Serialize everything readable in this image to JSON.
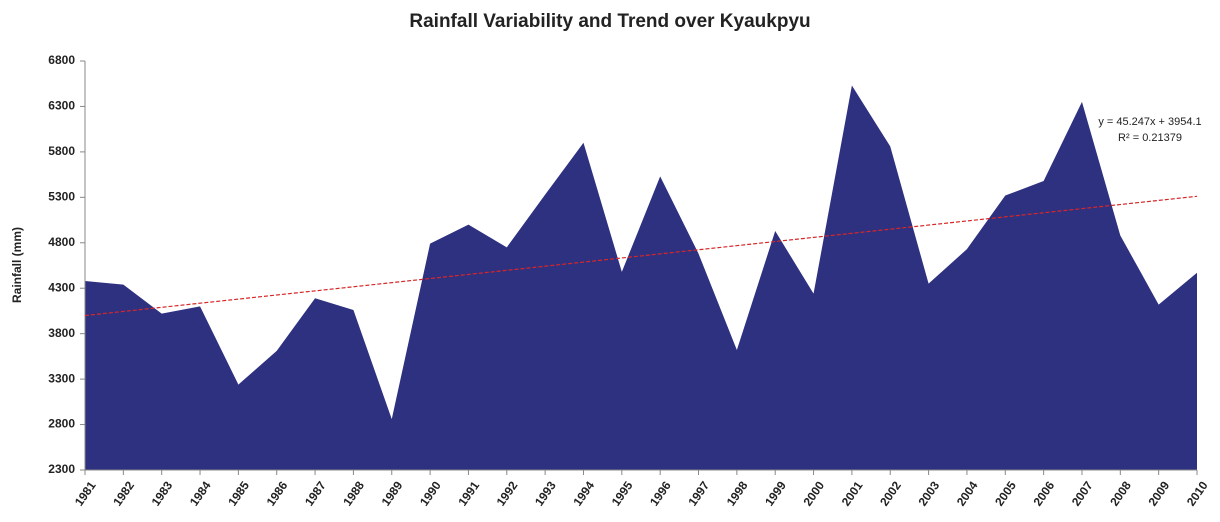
{
  "chart_data": {
    "type": "area",
    "title": "Rainfall Variability and Trend over Kyaukpyu",
    "y_label": "Rainfall (mm)",
    "categories": [
      "1981",
      "1982",
      "1983",
      "1984",
      "1985",
      "1986",
      "1987",
      "1988",
      "1989",
      "1990",
      "1991",
      "1992",
      "1993",
      "1994",
      "1995",
      "1996",
      "1997",
      "1998",
      "1999",
      "2000",
      "2001",
      "2002",
      "2003",
      "2004",
      "2005",
      "2006",
      "2007",
      "2008",
      "2009",
      "2010"
    ],
    "values": [
      4380,
      4340,
      4020,
      4100,
      3240,
      3610,
      4190,
      4060,
      2860,
      4790,
      5000,
      4750,
      5330,
      5900,
      4480,
      5530,
      4680,
      3620,
      4930,
      4240,
      6530,
      5860,
      4350,
      4730,
      5320,
      5480,
      6350,
      4880,
      4120,
      4470
    ],
    "color": "#2e3080",
    "ylim": [
      2300,
      6800
    ],
    "yticks": [
      2300,
      2800,
      3300,
      3800,
      4300,
      4800,
      5300,
      5800,
      6300,
      6800
    ],
    "trendline": {
      "slope": 45.247,
      "intercept": 3954.1,
      "color": "#d62728",
      "equation": "y = 45.247x + 3954.1",
      "r_squared": "R² = 0.21379"
    }
  }
}
